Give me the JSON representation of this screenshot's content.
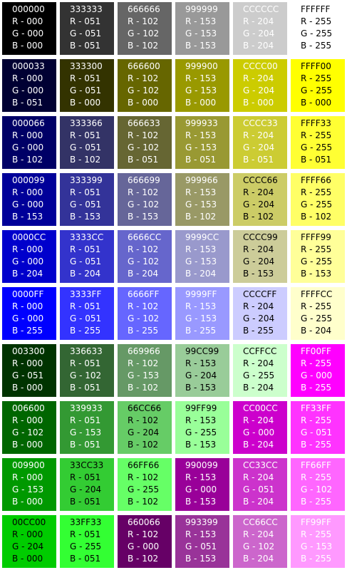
{
  "swatches": [
    {
      "hex": "000000",
      "r": "R - 000",
      "g": "G - 000",
      "b": "B - 000",
      "bg": "#000000",
      "fg": "#ffffff"
    },
    {
      "hex": "333333",
      "r": "R - 051",
      "g": "G - 051",
      "b": "B - 051",
      "bg": "#333333",
      "fg": "#ffffff"
    },
    {
      "hex": "666666",
      "r": "R - 102",
      "g": "G - 102",
      "b": "B - 102",
      "bg": "#666666",
      "fg": "#ffffff"
    },
    {
      "hex": "999999",
      "r": "R - 153",
      "g": "G - 153",
      "b": "B - 153",
      "bg": "#999999",
      "fg": "#ffffff"
    },
    {
      "hex": "CCCCCC",
      "r": "R - 204",
      "g": "G - 204",
      "b": "B - 204",
      "bg": "#cccccc",
      "fg": "#ffffff"
    },
    {
      "hex": "FFFFFF",
      "r": "R - 255",
      "g": "G - 255",
      "b": "B - 255",
      "bg": "#ffffff",
      "fg": "#000000"
    },
    {
      "hex": "000033",
      "r": "R - 000",
      "g": "G - 000",
      "b": "B - 051",
      "bg": "#000033",
      "fg": "#ffffff"
    },
    {
      "hex": "333300",
      "r": "R - 051",
      "g": "G - 051",
      "b": "B - 000",
      "bg": "#333300",
      "fg": "#ffffff"
    },
    {
      "hex": "666600",
      "r": "R - 102",
      "g": "G - 102",
      "b": "B - 000",
      "bg": "#666600",
      "fg": "#ffffff"
    },
    {
      "hex": "999900",
      "r": "R - 153",
      "g": "G - 153",
      "b": "B - 000",
      "bg": "#999900",
      "fg": "#ffffff"
    },
    {
      "hex": "CCCC00",
      "r": "R - 204",
      "g": "G - 204",
      "b": "B - 000",
      "bg": "#cccc00",
      "fg": "#ffffff"
    },
    {
      "hex": "FFFF00",
      "r": "R - 255",
      "g": "G - 255",
      "b": "B - 000",
      "bg": "#ffff00",
      "fg": "#000000"
    },
    {
      "hex": "000066",
      "r": "R - 000",
      "g": "G - 000",
      "b": "B - 102",
      "bg": "#000066",
      "fg": "#ffffff"
    },
    {
      "hex": "333366",
      "r": "R - 051",
      "g": "G - 051",
      "b": "B - 102",
      "bg": "#333366",
      "fg": "#ffffff"
    },
    {
      "hex": "666633",
      "r": "R - 102",
      "g": "G - 102",
      "b": "B - 051",
      "bg": "#666633",
      "fg": "#ffffff"
    },
    {
      "hex": "999933",
      "r": "R - 153",
      "g": "G - 153",
      "b": "B - 051",
      "bg": "#999933",
      "fg": "#ffffff"
    },
    {
      "hex": "CCCC33",
      "r": "R - 204",
      "g": "G - 204",
      "b": "B - 051",
      "bg": "#cccc33",
      "fg": "#ffffff"
    },
    {
      "hex": "FFFF33",
      "r": "R - 255",
      "g": "G - 255",
      "b": "B - 051",
      "bg": "#ffff33",
      "fg": "#000000"
    },
    {
      "hex": "000099",
      "r": "R - 000",
      "g": "G - 000",
      "b": "B - 153",
      "bg": "#000099",
      "fg": "#ffffff"
    },
    {
      "hex": "333399",
      "r": "R - 051",
      "g": "G - 051",
      "b": "B - 153",
      "bg": "#333399",
      "fg": "#ffffff"
    },
    {
      "hex": "666699",
      "r": "R - 102",
      "g": "G - 102",
      "b": "B - 153",
      "bg": "#666699",
      "fg": "#ffffff"
    },
    {
      "hex": "999966",
      "r": "R - 153",
      "g": "G - 153",
      "b": "B - 102",
      "bg": "#999966",
      "fg": "#ffffff"
    },
    {
      "hex": "CCCC66",
      "r": "R - 204",
      "g": "G - 204",
      "b": "B - 102",
      "bg": "#cccc66",
      "fg": "#000000"
    },
    {
      "hex": "FFFF66",
      "r": "R - 255",
      "g": "G - 255",
      "b": "B - 102",
      "bg": "#ffff66",
      "fg": "#000000"
    },
    {
      "hex": "0000CC",
      "r": "R - 000",
      "g": "G - 000",
      "b": "B - 204",
      "bg": "#0000cc",
      "fg": "#ffffff"
    },
    {
      "hex": "3333CC",
      "r": "R - 051",
      "g": "G - 051",
      "b": "B - 204",
      "bg": "#3333cc",
      "fg": "#ffffff"
    },
    {
      "hex": "6666CC",
      "r": "R - 102",
      "g": "G - 102",
      "b": "B - 204",
      "bg": "#6666cc",
      "fg": "#ffffff"
    },
    {
      "hex": "9999CC",
      "r": "R - 153",
      "g": "G - 153",
      "b": "B - 204",
      "bg": "#9999cc",
      "fg": "#ffffff"
    },
    {
      "hex": "CCCC99",
      "r": "R - 204",
      "g": "G - 204",
      "b": "B - 153",
      "bg": "#cccc99",
      "fg": "#000000"
    },
    {
      "hex": "FFFF99",
      "r": "R - 255",
      "g": "G - 255",
      "b": "B - 153",
      "bg": "#ffff99",
      "fg": "#000000"
    },
    {
      "hex": "0000FF",
      "r": "R - 000",
      "g": "G - 000",
      "b": "B - 255",
      "bg": "#0000ff",
      "fg": "#ffffff"
    },
    {
      "hex": "3333FF",
      "r": "R - 051",
      "g": "G - 051",
      "b": "B - 255",
      "bg": "#3333ff",
      "fg": "#ffffff"
    },
    {
      "hex": "6666FF",
      "r": "R - 102",
      "g": "G - 102",
      "b": "B - 255",
      "bg": "#6666ff",
      "fg": "#ffffff"
    },
    {
      "hex": "9999FF",
      "r": "R - 153",
      "g": "G - 153",
      "b": "B - 255",
      "bg": "#9999ff",
      "fg": "#ffffff"
    },
    {
      "hex": "CCCCFF",
      "r": "R - 204",
      "g": "G - 204",
      "b": "B - 255",
      "bg": "#ccccff",
      "fg": "#000000"
    },
    {
      "hex": "FFFFCC",
      "r": "R - 255",
      "g": "G - 255",
      "b": "B - 204",
      "bg": "#ffffcc",
      "fg": "#000000"
    },
    {
      "hex": "003300",
      "r": "R - 000",
      "g": "G - 051",
      "b": "B - 000",
      "bg": "#003300",
      "fg": "#ffffff"
    },
    {
      "hex": "336633",
      "r": "R - 051",
      "g": "G - 102",
      "b": "B - 051",
      "bg": "#336633",
      "fg": "#ffffff"
    },
    {
      "hex": "669966",
      "r": "R - 102",
      "g": "G - 153",
      "b": "B - 102",
      "bg": "#669966",
      "fg": "#ffffff"
    },
    {
      "hex": "99CC99",
      "r": "R - 153",
      "g": "G - 204",
      "b": "B - 153",
      "bg": "#99cc99",
      "fg": "#000000"
    },
    {
      "hex": "CCFFCC",
      "r": "R - 204",
      "g": "G - 255",
      "b": "B - 204",
      "bg": "#ccffcc",
      "fg": "#000000"
    },
    {
      "hex": "FF00FF",
      "r": "R - 255",
      "g": "G - 000",
      "b": "B - 255",
      "bg": "#ff00ff",
      "fg": "#ffffff"
    },
    {
      "hex": "006600",
      "r": "R - 000",
      "g": "G - 102",
      "b": "B - 000",
      "bg": "#006600",
      "fg": "#ffffff"
    },
    {
      "hex": "339933",
      "r": "R - 051",
      "g": "G - 153",
      "b": "B - 051",
      "bg": "#339933",
      "fg": "#ffffff"
    },
    {
      "hex": "66CC66",
      "r": "R - 102",
      "g": "G - 204",
      "b": "B - 102",
      "bg": "#66cc66",
      "fg": "#000000"
    },
    {
      "hex": "99FF99",
      "r": "R - 153",
      "g": "G - 255",
      "b": "B - 153",
      "bg": "#99ff99",
      "fg": "#000000"
    },
    {
      "hex": "CC00CC",
      "r": "R - 204",
      "g": "G - 000",
      "b": "B - 204",
      "bg": "#cc00cc",
      "fg": "#ffffff"
    },
    {
      "hex": "FF33FF",
      "r": "R - 255",
      "g": "G - 051",
      "b": "B - 255",
      "bg": "#ff33ff",
      "fg": "#ffffff"
    },
    {
      "hex": "009900",
      "r": "R - 000",
      "g": "G - 153",
      "b": "B - 000",
      "bg": "#009900",
      "fg": "#ffffff"
    },
    {
      "hex": "33CC33",
      "r": "R - 051",
      "g": "G - 204",
      "b": "B - 051",
      "bg": "#33cc33",
      "fg": "#000000"
    },
    {
      "hex": "66FF66",
      "r": "R - 102",
      "g": "G - 255",
      "b": "B - 102",
      "bg": "#66ff66",
      "fg": "#000000"
    },
    {
      "hex": "990099",
      "r": "R - 153",
      "g": "G - 000",
      "b": "B - 153",
      "bg": "#990099",
      "fg": "#ffffff"
    },
    {
      "hex": "CC33CC",
      "r": "R - 204",
      "g": "G - 051",
      "b": "B - 204",
      "bg": "#cc33cc",
      "fg": "#ffffff"
    },
    {
      "hex": "FF66FF",
      "r": "R - 255",
      "g": "G - 102",
      "b": "B - 255",
      "bg": "#ff66ff",
      "fg": "#ffffff"
    },
    {
      "hex": "00CC00",
      "r": "R - 000",
      "g": "G - 204",
      "b": "B - 000",
      "bg": "#00cc00",
      "fg": "#000000"
    },
    {
      "hex": "33FF33",
      "r": "R - 051",
      "g": "G - 255",
      "b": "B - 051",
      "bg": "#33ff33",
      "fg": "#000000"
    },
    {
      "hex": "660066",
      "r": "R - 102",
      "g": "G - 000",
      "b": "B - 102",
      "bg": "#660066",
      "fg": "#ffffff"
    },
    {
      "hex": "993399",
      "r": "R - 153",
      "g": "G - 051",
      "b": "B - 153",
      "bg": "#993399",
      "fg": "#ffffff"
    },
    {
      "hex": "CC66CC",
      "r": "R - 204",
      "g": "G - 102",
      "b": "B - 204",
      "bg": "#cc66cc",
      "fg": "#ffffff"
    },
    {
      "hex": "FF99FF",
      "r": "R - 255",
      "g": "G - 153",
      "b": "B - 255",
      "bg": "#ff99ff",
      "fg": "#ffffff"
    }
  ]
}
